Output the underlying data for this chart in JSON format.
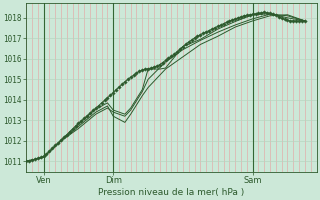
{
  "xlabel": "Pression niveau de la mer( hPa )",
  "ylim": [
    1010.5,
    1018.7
  ],
  "xlim": [
    0,
    100
  ],
  "yticks": [
    1011,
    1012,
    1013,
    1014,
    1015,
    1016,
    1017,
    1018
  ],
  "xtick_positions": [
    6,
    30,
    78
  ],
  "xtick_labels": [
    "Ven",
    "Dim",
    "Sam"
  ],
  "bg_color": "#cce8d8",
  "vline_color": "#336633",
  "line_color": "#2d5a2d",
  "grid_v_color": "#e8a0a0",
  "grid_h_color": "#b8d4c0",
  "line1": [
    [
      0,
      1011.0
    ],
    [
      1,
      1011.0
    ],
    [
      2,
      1011.05
    ],
    [
      3,
      1011.1
    ],
    [
      4,
      1011.15
    ],
    [
      5,
      1011.2
    ],
    [
      6,
      1011.25
    ],
    [
      7,
      1011.35
    ],
    [
      8,
      1011.5
    ],
    [
      9,
      1011.65
    ],
    [
      10,
      1011.78
    ],
    [
      11,
      1011.9
    ],
    [
      12,
      1012.05
    ],
    [
      13,
      1012.18
    ],
    [
      14,
      1012.3
    ],
    [
      15,
      1012.45
    ],
    [
      16,
      1012.58
    ],
    [
      17,
      1012.72
    ],
    [
      18,
      1012.85
    ],
    [
      19,
      1012.98
    ],
    [
      20,
      1013.1
    ],
    [
      21,
      1013.22
    ],
    [
      22,
      1013.35
    ],
    [
      23,
      1013.48
    ],
    [
      24,
      1013.6
    ],
    [
      25,
      1013.72
    ],
    [
      26,
      1013.85
    ],
    [
      27,
      1013.97
    ],
    [
      28,
      1014.1
    ],
    [
      29,
      1014.22
    ],
    [
      30,
      1014.35
    ],
    [
      31,
      1014.5
    ],
    [
      32,
      1014.62
    ],
    [
      33,
      1014.75
    ],
    [
      34,
      1014.88
    ],
    [
      35,
      1015.0
    ],
    [
      36,
      1015.1
    ],
    [
      37,
      1015.2
    ],
    [
      38,
      1015.3
    ],
    [
      39,
      1015.4
    ],
    [
      40,
      1015.45
    ],
    [
      41,
      1015.5
    ],
    [
      42,
      1015.52
    ],
    [
      43,
      1015.55
    ],
    [
      44,
      1015.6
    ],
    [
      45,
      1015.65
    ],
    [
      46,
      1015.72
    ],
    [
      47,
      1015.82
    ],
    [
      48,
      1015.92
    ],
    [
      49,
      1016.02
    ],
    [
      50,
      1016.12
    ],
    [
      51,
      1016.22
    ],
    [
      52,
      1016.35
    ],
    [
      53,
      1016.48
    ],
    [
      54,
      1016.6
    ],
    [
      55,
      1016.72
    ],
    [
      56,
      1016.82
    ],
    [
      57,
      1016.92
    ],
    [
      58,
      1017.02
    ],
    [
      59,
      1017.1
    ],
    [
      60,
      1017.18
    ],
    [
      61,
      1017.25
    ],
    [
      62,
      1017.32
    ],
    [
      63,
      1017.38
    ],
    [
      64,
      1017.45
    ],
    [
      65,
      1017.52
    ],
    [
      66,
      1017.58
    ],
    [
      67,
      1017.65
    ],
    [
      68,
      1017.72
    ],
    [
      69,
      1017.78
    ],
    [
      70,
      1017.85
    ],
    [
      71,
      1017.9
    ],
    [
      72,
      1017.95
    ],
    [
      73,
      1018.0
    ],
    [
      74,
      1018.05
    ],
    [
      75,
      1018.1
    ],
    [
      76,
      1018.12
    ],
    [
      77,
      1018.15
    ],
    [
      78,
      1018.18
    ],
    [
      79,
      1018.2
    ],
    [
      80,
      1018.22
    ],
    [
      81,
      1018.25
    ],
    [
      82,
      1018.28
    ],
    [
      83,
      1018.25
    ],
    [
      84,
      1018.22
    ],
    [
      85,
      1018.18
    ],
    [
      86,
      1018.12
    ],
    [
      87,
      1018.05
    ],
    [
      88,
      1017.98
    ],
    [
      89,
      1017.92
    ],
    [
      90,
      1017.88
    ],
    [
      91,
      1017.85
    ],
    [
      92,
      1017.85
    ],
    [
      93,
      1017.85
    ],
    [
      94,
      1017.85
    ],
    [
      95,
      1017.85
    ],
    [
      96,
      1017.85
    ]
  ],
  "line2": [
    [
      0,
      1011.0
    ],
    [
      6,
      1011.2
    ],
    [
      12,
      1012.0
    ],
    [
      18,
      1012.8
    ],
    [
      24,
      1013.55
    ],
    [
      28,
      1013.85
    ],
    [
      30,
      1013.5
    ],
    [
      34,
      1013.3
    ],
    [
      36,
      1013.6
    ],
    [
      40,
      1014.5
    ],
    [
      42,
      1015.5
    ],
    [
      46,
      1015.5
    ],
    [
      48,
      1015.55
    ],
    [
      54,
      1016.6
    ],
    [
      60,
      1016.95
    ],
    [
      66,
      1017.45
    ],
    [
      72,
      1017.82
    ],
    [
      78,
      1018.15
    ],
    [
      84,
      1018.2
    ],
    [
      90,
      1018.0
    ],
    [
      96,
      1017.85
    ]
  ],
  "line3": [
    [
      0,
      1011.0
    ],
    [
      6,
      1011.2
    ],
    [
      12,
      1012.0
    ],
    [
      18,
      1012.7
    ],
    [
      24,
      1013.4
    ],
    [
      28,
      1013.7
    ],
    [
      30,
      1013.2
    ],
    [
      34,
      1012.9
    ],
    [
      36,
      1013.3
    ],
    [
      40,
      1014.2
    ],
    [
      42,
      1014.6
    ],
    [
      48,
      1015.5
    ],
    [
      54,
      1016.1
    ],
    [
      60,
      1016.7
    ],
    [
      66,
      1017.1
    ],
    [
      72,
      1017.55
    ],
    [
      78,
      1017.85
    ],
    [
      84,
      1018.1
    ],
    [
      90,
      1018.15
    ],
    [
      96,
      1017.85
    ]
  ],
  "line4": [
    [
      0,
      1011.0
    ],
    [
      6,
      1011.2
    ],
    [
      12,
      1012.0
    ],
    [
      18,
      1012.6
    ],
    [
      24,
      1013.3
    ],
    [
      28,
      1013.6
    ],
    [
      30,
      1013.4
    ],
    [
      34,
      1013.2
    ],
    [
      36,
      1013.5
    ],
    [
      40,
      1014.4
    ],
    [
      42,
      1015.0
    ],
    [
      48,
      1015.85
    ],
    [
      54,
      1016.45
    ],
    [
      60,
      1016.9
    ],
    [
      66,
      1017.3
    ],
    [
      72,
      1017.65
    ],
    [
      78,
      1017.95
    ],
    [
      84,
      1018.18
    ],
    [
      90,
      1018.1
    ],
    [
      96,
      1017.85
    ]
  ],
  "vlines": [
    6,
    30,
    78
  ],
  "n_vgrid": 50,
  "marker": "D",
  "marker_size": 1.8,
  "lw": 0.7
}
